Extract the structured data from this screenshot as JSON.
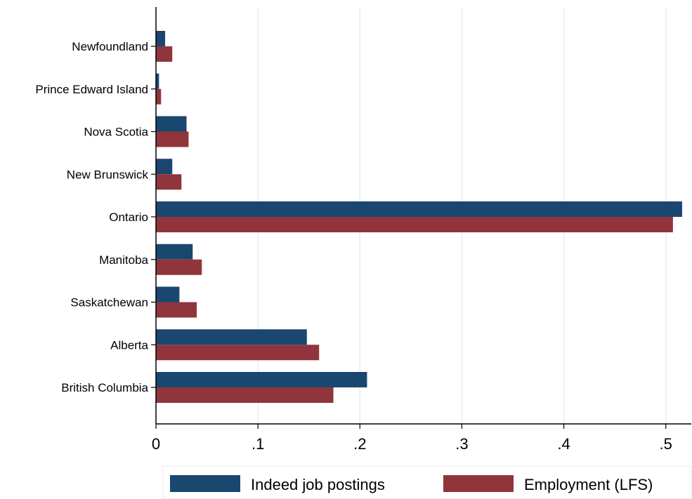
{
  "chart_data": {
    "type": "bar",
    "orientation": "horizontal",
    "categories": [
      "Newfoundland",
      "Prince Edward Island",
      "Nova Scotia",
      "New Brunswick",
      "Ontario",
      "Manitoba",
      "Saskatchewan",
      "Alberta",
      "British Columbia"
    ],
    "series": [
      {
        "name": "Indeed job postings",
        "color": "#1a476f",
        "values": [
          0.009,
          0.003,
          0.03,
          0.016,
          0.516,
          0.036,
          0.023,
          0.148,
          0.207
        ]
      },
      {
        "name": "Employment (LFS)",
        "color": "#90353b",
        "values": [
          0.016,
          0.005,
          0.032,
          0.025,
          0.507,
          0.045,
          0.04,
          0.16,
          0.174
        ]
      }
    ],
    "xticks": [
      0,
      0.1,
      0.2,
      0.3,
      0.4,
      0.5
    ],
    "xtick_labels": [
      "0",
      ".1",
      ".2",
      ".3",
      ".4",
      ".5"
    ],
    "xlim": [
      0,
      0.525
    ],
    "title": "",
    "xlabel": "",
    "ylabel": "",
    "grid": "vertical",
    "legend_position": "bottom"
  }
}
